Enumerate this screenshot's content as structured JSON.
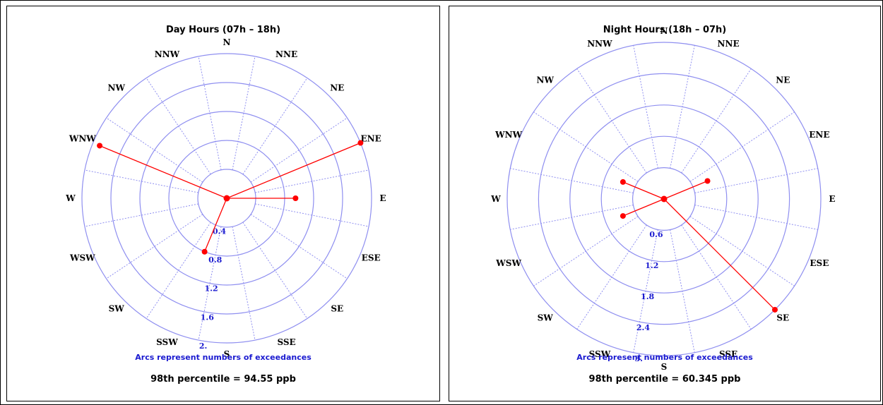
{
  "colors": {
    "grid": "#8f8ff0",
    "series": "#ff0000",
    "note": "#1a1ad0"
  },
  "chart_data": [
    {
      "type": "polar",
      "title": "Day Hours (07h – 18h)",
      "note": "Arcs represent numbers of exceedances",
      "percentile": "98th percentile = 94.55 ppb",
      "directions": [
        "N",
        "NNE",
        "NE",
        "ENE",
        "E",
        "ESE",
        "SE",
        "SSE",
        "S",
        "SSW",
        "SW",
        "WSW",
        "W",
        "WNW",
        "NW",
        "NNW"
      ],
      "rings": [
        0.4,
        0.8,
        1.2,
        1.6,
        2.0
      ],
      "ring_labels": [
        "0.4",
        "0.8",
        "1.2",
        "1.6",
        "2."
      ],
      "rmax": 2.0,
      "points": [
        {
          "direction": "ENE",
          "value": 2.0
        },
        {
          "direction": "E",
          "value": 0.95
        },
        {
          "direction": "SSW",
          "value": 0.8
        },
        {
          "direction": "WNW",
          "value": 1.9
        }
      ]
    },
    {
      "type": "polar",
      "title": "Night Hours (18h – 07h)",
      "note": "Arcs represent numbers of exceedances",
      "percentile": "98th percentile = 60.345 ppb",
      "directions": [
        "N",
        "NNE",
        "NE",
        "ENE",
        "E",
        "ESE",
        "SE",
        "SSE",
        "S",
        "SSW",
        "SW",
        "WSW",
        "W",
        "WNW",
        "NW",
        "NNW"
      ],
      "rings": [
        0.6,
        1.2,
        1.8,
        2.4,
        3.0
      ],
      "ring_labels": [
        "0.6",
        "1.2",
        "1.8",
        "2.4",
        "3."
      ],
      "rmax": 3.0,
      "points": [
        {
          "direction": "ENE",
          "value": 0.9
        },
        {
          "direction": "SE",
          "value": 3.0
        },
        {
          "direction": "WSW",
          "value": 0.85
        },
        {
          "direction": "WNW",
          "value": 0.85
        }
      ]
    }
  ]
}
